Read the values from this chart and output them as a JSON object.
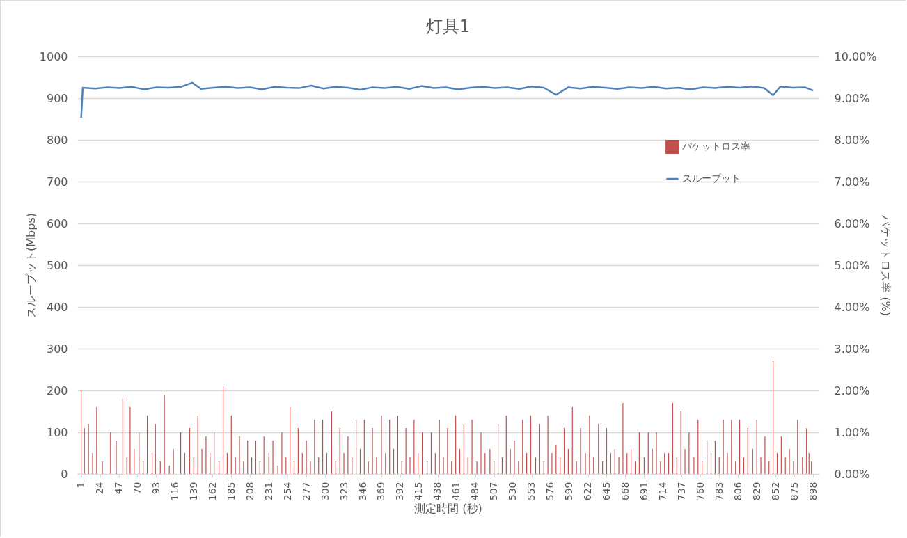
{
  "chart_data": {
    "type": "bar",
    "title": "灯具1",
    "xlabel": "測定時間 (秒)",
    "ylabel": "スループット(Mbps)",
    "y2label": "パケットロス率 (%)",
    "xlim": [
      0.5,
      900.5
    ],
    "xticks": [
      1,
      24,
      47,
      70,
      93,
      116,
      139,
      162,
      185,
      208,
      231,
      254,
      277,
      300,
      323,
      346,
      369,
      392,
      415,
      438,
      461,
      484,
      507,
      530,
      553,
      576,
      599,
      622,
      645,
      668,
      691,
      714,
      737,
      760,
      783,
      806,
      829,
      852,
      875,
      898
    ],
    "ylim": [
      0,
      1000
    ],
    "yticks": [
      0,
      100,
      200,
      300,
      400,
      500,
      600,
      700,
      800,
      900,
      1000
    ],
    "y2lim": [
      0,
      10
    ],
    "y2ticks": [
      {
        "value": 0,
        "label": "0.00%"
      },
      {
        "value": 1,
        "label": "1.00%"
      },
      {
        "value": 2,
        "label": "2.00%"
      },
      {
        "value": 3,
        "label": "3.00%"
      },
      {
        "value": 4,
        "label": "4.00%"
      },
      {
        "value": 5,
        "label": "5.00%"
      },
      {
        "value": 6,
        "label": "6.00%"
      },
      {
        "value": 7,
        "label": "7.00%"
      },
      {
        "value": 8,
        "label": "8.00%"
      },
      {
        "value": 9,
        "label": "9.00%"
      },
      {
        "value": 10,
        "label": "10.00%"
      }
    ],
    "grid": "y",
    "legend": "top right",
    "series": [
      {
        "name": "パケットロス率",
        "axis": "y2",
        "color": "#c0504d",
        "x": [
          1,
          5,
          10,
          15,
          20,
          27,
          37,
          44,
          52,
          57,
          61,
          66,
          72,
          77,
          82,
          88,
          92,
          98,
          103,
          109,
          114,
          123,
          128,
          134,
          139,
          144,
          149,
          154,
          159,
          164,
          170,
          175,
          180,
          185,
          190,
          195,
          200,
          205,
          210,
          215,
          220,
          225,
          231,
          236,
          242,
          247,
          252,
          257,
          262,
          267,
          272,
          277,
          282,
          287,
          292,
          297,
          302,
          308,
          313,
          318,
          323,
          328,
          333,
          338,
          343,
          348,
          353,
          358,
          363,
          369,
          374,
          379,
          384,
          389,
          394,
          399,
          404,
          409,
          414,
          419,
          425,
          430,
          435,
          440,
          445,
          450,
          455,
          460,
          465,
          470,
          475,
          480,
          486,
          491,
          496,
          502,
          507,
          512,
          517,
          522,
          527,
          532,
          537,
          542,
          547,
          552,
          558,
          563,
          568,
          573,
          578,
          583,
          588,
          593,
          598,
          603,
          608,
          613,
          619,
          624,
          629,
          635,
          640,
          645,
          650,
          655,
          660,
          665,
          670,
          675,
          680,
          685,
          691,
          696,
          701,
          706,
          711,
          716,
          721,
          726,
          731,
          736,
          741,
          746,
          752,
          757,
          762,
          768,
          773,
          778,
          783,
          788,
          793,
          798,
          803,
          808,
          813,
          818,
          824,
          829,
          834,
          839,
          844,
          849,
          854,
          859,
          864,
          869,
          874,
          879,
          885,
          890,
          893,
          896
        ],
        "values": [
          2.0,
          1.1,
          1.2,
          0.5,
          1.6,
          0.3,
          1.0,
          0.8,
          1.8,
          0.4,
          1.6,
          0.6,
          1.0,
          0.3,
          1.4,
          0.5,
          1.2,
          0.3,
          1.9,
          0.2,
          0.6,
          1.0,
          0.5,
          1.1,
          0.4,
          1.4,
          0.6,
          0.9,
          0.5,
          1.0,
          0.3,
          2.1,
          0.5,
          1.4,
          0.4,
          0.9,
          0.3,
          0.8,
          0.4,
          0.8,
          0.3,
          0.9,
          0.5,
          0.8,
          0.2,
          1.0,
          0.4,
          1.6,
          0.3,
          1.1,
          0.5,
          0.8,
          0.3,
          1.3,
          0.4,
          1.3,
          0.5,
          1.5,
          0.3,
          1.1,
          0.5,
          0.9,
          0.4,
          1.3,
          0.6,
          1.3,
          0.3,
          1.1,
          0.4,
          1.4,
          0.5,
          1.3,
          0.6,
          1.4,
          0.3,
          1.1,
          0.4,
          1.3,
          0.5,
          1.0,
          0.3,
          1.0,
          0.5,
          1.3,
          0.4,
          1.1,
          0.3,
          1.4,
          0.6,
          1.2,
          0.4,
          1.3,
          0.3,
          1.0,
          0.5,
          0.6,
          0.3,
          1.2,
          0.4,
          1.4,
          0.6,
          0.8,
          0.3,
          1.3,
          0.5,
          1.4,
          0.4,
          1.2,
          0.3,
          1.4,
          0.5,
          0.7,
          0.4,
          1.1,
          0.6,
          1.6,
          0.3,
          1.1,
          0.5,
          1.4,
          0.4,
          1.2,
          0.3,
          1.1,
          0.5,
          0.6,
          0.4,
          1.7,
          0.5,
          0.6,
          0.3,
          1.0,
          0.4,
          1.0,
          0.6,
          1.0,
          0.3,
          0.5,
          0.5,
          1.7,
          0.4,
          1.5,
          0.6,
          1.0,
          0.4,
          1.3,
          0.3,
          0.8,
          0.5,
          0.8,
          0.4,
          1.3,
          0.5,
          1.3,
          0.3,
          1.3,
          0.4,
          1.1,
          0.6,
          1.3,
          0.4,
          0.9,
          0.3,
          2.7,
          0.5,
          0.9,
          0.4,
          0.6,
          0.3,
          1.3,
          0.4,
          1.1,
          0.5,
          0.3
        ]
      },
      {
        "name": "スループット",
        "type": "line",
        "color": "#4f81bd",
        "x": [
          1,
          3,
          18,
          33,
          48,
          63,
          78,
          93,
          108,
          123,
          137,
          148,
          163,
          178,
          193,
          208,
          223,
          238,
          253,
          268,
          283,
          298,
          313,
          328,
          343,
          358,
          373,
          388,
          403,
          418,
          433,
          448,
          463,
          478,
          493,
          508,
          523,
          538,
          553,
          568,
          583,
          598,
          613,
          628,
          643,
          658,
          673,
          688,
          703,
          718,
          733,
          748,
          763,
          778,
          793,
          808,
          823,
          838,
          849,
          858,
          873,
          888,
          898
        ],
        "values": [
          853,
          925,
          923,
          926,
          924,
          927,
          921,
          926,
          925,
          927,
          937,
          922,
          925,
          927,
          924,
          926,
          921,
          927,
          925,
          924,
          930,
          923,
          927,
          925,
          920,
          926,
          924,
          927,
          922,
          929,
          924,
          926,
          921,
          925,
          927,
          924,
          926,
          922,
          928,
          925,
          908,
          926,
          923,
          927,
          925,
          922,
          926,
          924,
          927,
          923,
          925,
          921,
          926,
          924,
          927,
          925,
          928,
          924,
          907,
          928,
          925,
          926,
          918
        ]
      }
    ]
  }
}
